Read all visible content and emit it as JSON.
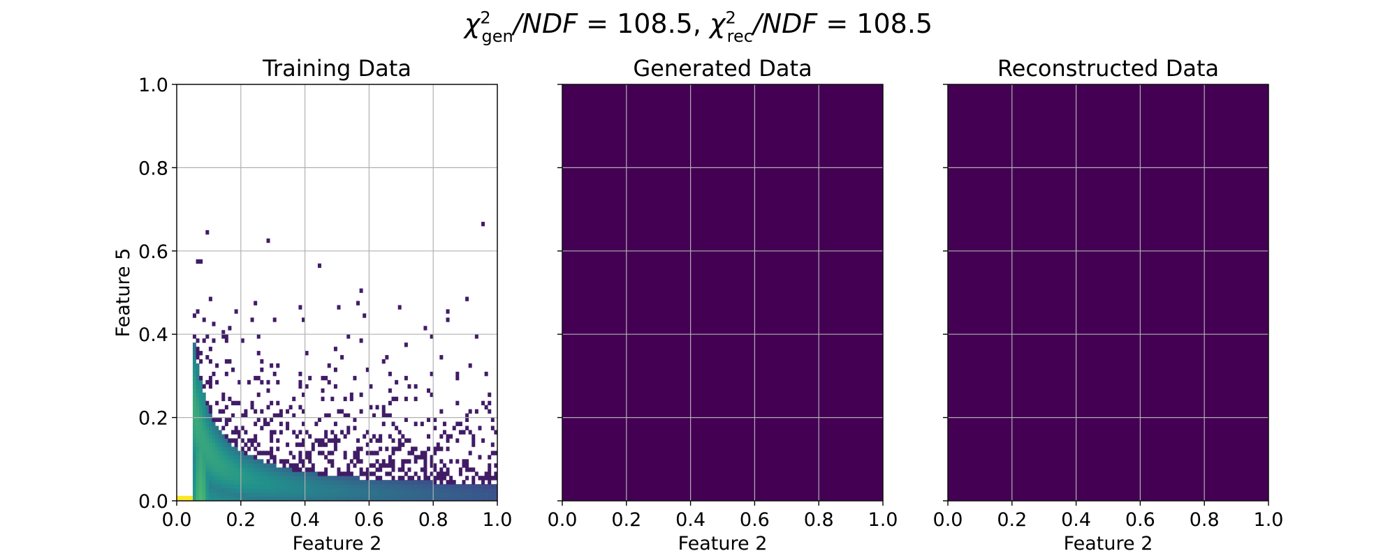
{
  "figure": {
    "suptitle_parts": {
      "gen_symbol": "χ",
      "gen_sup": "2",
      "gen_sub": "gen",
      "gen_ndf": "/NDF",
      "gen_value": " = 108.5, ",
      "rec_symbol": "χ",
      "rec_sup": "2",
      "rec_sub": "rec",
      "rec_ndf": "/NDF",
      "rec_value": " = 108.5"
    }
  },
  "colors": {
    "viridis_low": "#440154",
    "viridis_mid": "#21918c",
    "viridis_high": "#fde725",
    "grid": "#b0b0b0",
    "axes": "#000000"
  },
  "chart_data": [
    {
      "type": "heatmap",
      "title": "Training Data",
      "xlabel": "Feature 2",
      "ylabel": "Feature 5",
      "xlim": [
        0.0,
        1.0
      ],
      "ylim": [
        0.0,
        1.0
      ],
      "xticks": [
        "0.0",
        "0.2",
        "0.4",
        "0.6",
        "0.8",
        "1.0"
      ],
      "yticks": [
        "0.0",
        "0.2",
        "0.4",
        "0.6",
        "0.8",
        "1.0"
      ],
      "grid": true,
      "colormap": "viridis",
      "distribution": "dense L-shaped band: column near x≈0.05–0.10 extending to y=1.0, tail along y≈0–0.2 to x=1.0 decaying as y≈0.02/x; brightest near origin"
    },
    {
      "type": "heatmap",
      "title": "Generated Data",
      "xlabel": "Feature 2",
      "ylabel": "",
      "xlim": [
        0.0,
        1.0
      ],
      "ylim": [
        0.0,
        1.0
      ],
      "xticks": [
        "0.0",
        "0.2",
        "0.4",
        "0.6",
        "0.8",
        "1.0"
      ],
      "yticks": [],
      "grid": true,
      "colormap": "viridis",
      "distribution": "uniform minimum value (flat purple)"
    },
    {
      "type": "heatmap",
      "title": "Reconstructed Data",
      "xlabel": "Feature 2",
      "ylabel": "",
      "xlim": [
        0.0,
        1.0
      ],
      "ylim": [
        0.0,
        1.0
      ],
      "xticks": [
        "0.0",
        "0.2",
        "0.4",
        "0.6",
        "0.8",
        "1.0"
      ],
      "yticks": [],
      "grid": true,
      "colormap": "viridis",
      "distribution": "uniform minimum value (flat purple)"
    }
  ]
}
